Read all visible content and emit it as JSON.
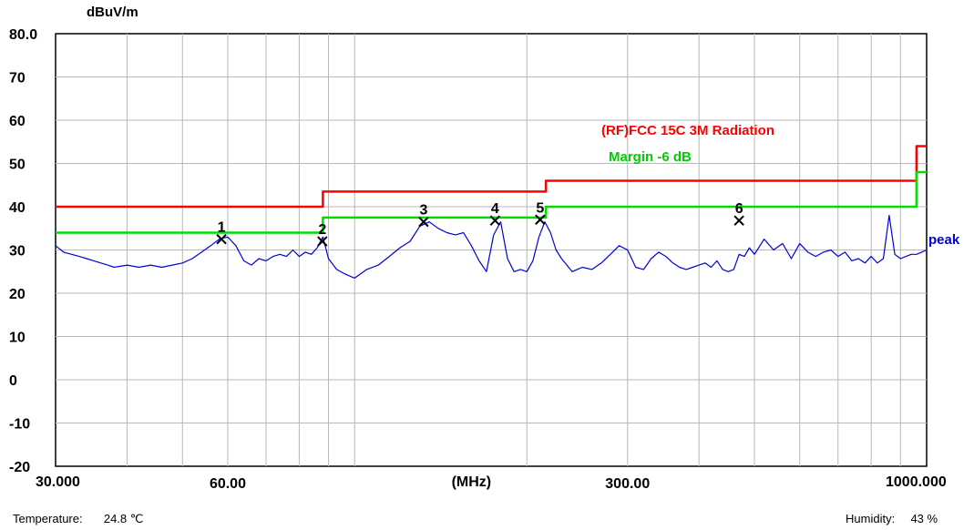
{
  "chart_data": {
    "type": "line",
    "y_unit": "dBuV/m",
    "x_unit": "(MHz)",
    "x_scale": "log",
    "xlim": [
      30,
      1000
    ],
    "ylim": [
      -20,
      80
    ],
    "y_tick_labels": [
      "80.0",
      "70",
      "60",
      "50",
      "40",
      "30",
      "20",
      "10",
      "0",
      "-10",
      "-20"
    ],
    "y_tick_values": [
      80,
      70,
      60,
      50,
      40,
      30,
      20,
      10,
      0,
      -10,
      -20
    ],
    "x_tick_labels": [
      {
        "label": "30.000",
        "value": 30
      },
      {
        "label": "60.00",
        "value": 60
      },
      {
        "label": "(MHz)",
        "value": 160
      },
      {
        "label": "300.00",
        "value": 300
      },
      {
        "label": "1000.000",
        "value": 1000
      }
    ],
    "grid": true,
    "legend": [
      {
        "name": "(RF)FCC 15C 3M Radiation",
        "color": "#ff0000"
      },
      {
        "name": "Margin -6 dB",
        "color": "#00dd00"
      }
    ],
    "series": [
      {
        "name": "(RF)FCC 15C 3M Radiation",
        "color": "#ff0000",
        "style": "step",
        "x": [
          30,
          88,
          88,
          216,
          216,
          960,
          960,
          1000
        ],
        "y": [
          40.0,
          40.0,
          43.5,
          43.5,
          46.0,
          46.0,
          54.0,
          54.0
        ]
      },
      {
        "name": "Margin -6 dB",
        "color": "#00dd00",
        "style": "step",
        "x": [
          30,
          88,
          88,
          216,
          216,
          960,
          960,
          1000
        ],
        "y": [
          34.0,
          34.0,
          37.5,
          37.5,
          40.0,
          40.0,
          48.0,
          48.0
        ]
      },
      {
        "name": "peak",
        "color": "#0000dd",
        "style": "line",
        "x": [
          30,
          31,
          32,
          33,
          34,
          35,
          36,
          37,
          38,
          40,
          42,
          44,
          46,
          48,
          50,
          52,
          54,
          56,
          58,
          60,
          62,
          64,
          66,
          68,
          70,
          72,
          74,
          76,
          78,
          80,
          82,
          84,
          86,
          88,
          90,
          93,
          96,
          100,
          105,
          110,
          115,
          120,
          125,
          130,
          135,
          140,
          145,
          150,
          155,
          160,
          165,
          170,
          175,
          180,
          185,
          190,
          195,
          200,
          205,
          210,
          215,
          220,
          225,
          230,
          235,
          240,
          250,
          260,
          270,
          280,
          290,
          300,
          310,
          320,
          330,
          340,
          350,
          360,
          370,
          380,
          390,
          400,
          410,
          420,
          430,
          440,
          450,
          460,
          470,
          480,
          490,
          500,
          520,
          540,
          560,
          580,
          600,
          620,
          640,
          660,
          680,
          700,
          720,
          740,
          760,
          780,
          800,
          820,
          840,
          860,
          880,
          900,
          920,
          940,
          960,
          980,
          1000
        ],
        "y": [
          31.0,
          29.5,
          29.0,
          28.5,
          28.0,
          27.5,
          27.0,
          26.5,
          26.0,
          26.5,
          26.0,
          26.5,
          26.0,
          26.5,
          27.0,
          28.0,
          29.5,
          31.0,
          32.5,
          33.0,
          31.0,
          27.5,
          26.5,
          28.0,
          27.5,
          28.5,
          29.0,
          28.5,
          30.0,
          28.5,
          29.5,
          29.0,
          30.5,
          33.0,
          28.0,
          25.5,
          24.5,
          23.5,
          25.5,
          26.5,
          28.5,
          30.5,
          32.0,
          35.5,
          36.5,
          35.0,
          34.0,
          33.5,
          34.0,
          31.0,
          27.5,
          25.0,
          33.5,
          36.5,
          28.0,
          25.0,
          25.5,
          25.0,
          27.5,
          33.0,
          36.5,
          34.0,
          30.0,
          28.0,
          26.5,
          25.0,
          26.0,
          25.5,
          27.0,
          29.0,
          31.0,
          30.0,
          26.0,
          25.5,
          28.0,
          29.5,
          28.5,
          27.0,
          26.0,
          25.5,
          26.0,
          26.5,
          27.0,
          26.0,
          27.5,
          25.5,
          25.0,
          25.5,
          29.0,
          28.5,
          30.5,
          29.0,
          32.5,
          30.0,
          31.5,
          28.0,
          31.5,
          29.5,
          28.5,
          29.5,
          30.0,
          28.5,
          29.5,
          27.5,
          28.0,
          27.0,
          28.5,
          27.0,
          28.0,
          38.0,
          29.0,
          28.0,
          28.5,
          29.0,
          29.0,
          29.5,
          30.0
        ]
      }
    ],
    "markers": [
      {
        "label": "1",
        "x": 58.5,
        "y": 32.5
      },
      {
        "label": "2",
        "x": 87.8,
        "y": 32.0
      },
      {
        "label": "3",
        "x": 132.0,
        "y": 36.5
      },
      {
        "label": "4",
        "x": 176.0,
        "y": 36.8
      },
      {
        "label": "5",
        "x": 211.0,
        "y": 37.0
      },
      {
        "label": "6",
        "x": 470.0,
        "y": 36.8
      }
    ],
    "peak_label": "peak"
  },
  "footer": {
    "temperature_label": "Temperature:",
    "temperature_value": "24.8 ℃",
    "humidity_label": "Humidity:",
    "humidity_value": "43 %"
  }
}
